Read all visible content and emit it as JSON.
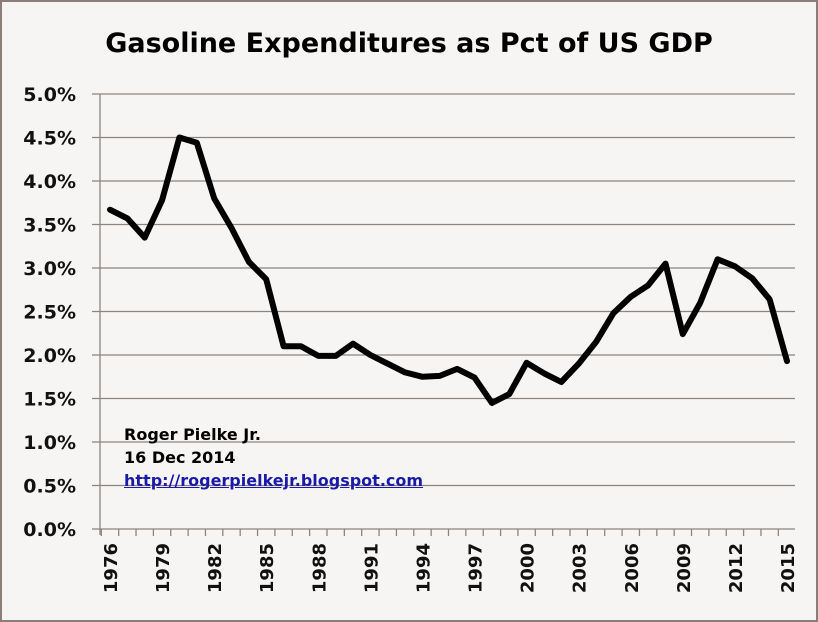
{
  "chart_data": {
    "type": "line",
    "title": "Gasoline Expenditures as Pct of US GDP",
    "xlabel": "",
    "ylabel": "",
    "ylim": [
      0,
      5.0
    ],
    "y_unit": "%",
    "yticks": [
      "0.0%",
      "0.5%",
      "1.0%",
      "1.5%",
      "2.0%",
      "2.5%",
      "3.0%",
      "3.5%",
      "4.0%",
      "4.5%",
      "5.0%"
    ],
    "xticks": [
      "1976",
      "1979",
      "1982",
      "1985",
      "1988",
      "1991",
      "1994",
      "1997",
      "2000",
      "2003",
      "2006",
      "2009",
      "2012",
      "2015"
    ],
    "grid": true,
    "legend": "none",
    "x": [
      1976,
      1977,
      1978,
      1979,
      1980,
      1981,
      1982,
      1983,
      1984,
      1985,
      1986,
      1987,
      1988,
      1989,
      1990,
      1991,
      1992,
      1993,
      1994,
      1995,
      1996,
      1997,
      1998,
      1999,
      2000,
      2001,
      2002,
      2003,
      2004,
      2005,
      2006,
      2007,
      2008,
      2009,
      2010,
      2011,
      2012,
      2013,
      2014,
      2015
    ],
    "series": [
      {
        "name": "Gasoline expenditures as % of US GDP",
        "color": "#000000",
        "values": [
          3.67,
          3.57,
          3.35,
          3.78,
          4.5,
          4.44,
          3.8,
          3.46,
          3.07,
          2.87,
          2.1,
          2.1,
          1.99,
          1.99,
          2.13,
          2.0,
          1.9,
          1.8,
          1.75,
          1.76,
          1.84,
          1.74,
          1.45,
          1.55,
          1.91,
          1.79,
          1.69,
          1.9,
          2.15,
          2.48,
          2.67,
          2.8,
          3.05,
          2.24,
          2.6,
          3.1,
          3.02,
          2.88,
          2.64,
          1.93
        ]
      }
    ],
    "annotations": {
      "author": "Roger Pielke Jr.",
      "date": "16 Dec 2014",
      "link": "http://rogerpielkejr.blogspot.com",
      "link_color": "#1a1aa8"
    }
  }
}
